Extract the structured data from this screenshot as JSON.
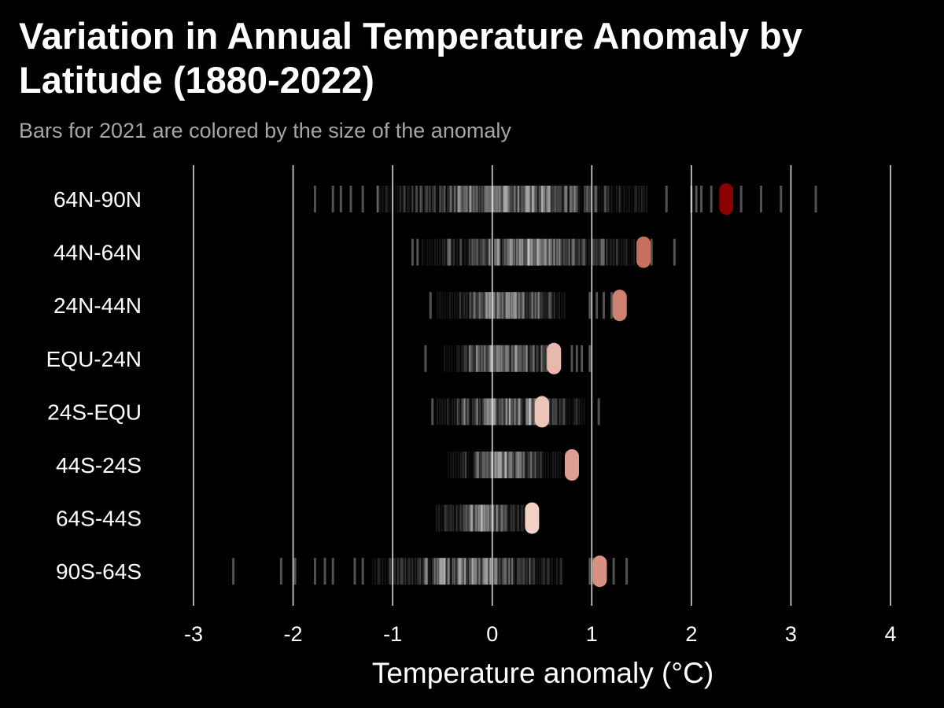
{
  "title": "Variation in Annual Temperature Anomaly by Latitude (1880-2022)",
  "subtitle": "Bars for 2021 are colored by the size of the anomaly",
  "chart_data": {
    "type": "strip",
    "title": "Variation in Annual Temperature Anomaly by Latitude (1880-2022)",
    "subtitle": "Bars for 2021 are colored by the size of the anomaly",
    "xlabel": "Temperature anomaly (°C)",
    "ylabel": "",
    "xlim": [
      -3,
      4
    ],
    "x_ticks": [
      -3,
      -2,
      -1,
      0,
      1,
      2,
      3,
      4
    ],
    "x_tick_labels": [
      "-3",
      "-2",
      "-1",
      "0",
      "1",
      "2",
      "3",
      "4"
    ],
    "grid": "vertical",
    "background": "#000000",
    "categories": [
      "64N-90N",
      "44N-64N",
      "24N-44N",
      "EQU-24N",
      "24S-EQU",
      "44S-24S",
      "64S-44S",
      "90S-64S"
    ],
    "series": [
      {
        "name": "64N-90N",
        "min": -1.78,
        "max": 3.25,
        "core": [
          -1.15,
          1.55
        ],
        "highlight_2021": 2.35,
        "highlight_color": "#8b0000",
        "outliers": [
          -1.78,
          -1.6,
          -1.52,
          -1.42,
          -1.3,
          -1.15,
          1.75,
          2.0,
          2.05,
          2.1,
          2.2,
          2.5,
          2.7,
          2.9,
          3.25
        ]
      },
      {
        "name": "44N-64N",
        "min": -0.8,
        "max": 1.83,
        "core": [
          -0.7,
          1.45
        ],
        "highlight_2021": 1.52,
        "highlight_color": "#c87060",
        "outliers": [
          -0.8,
          -0.75,
          1.6,
          1.83
        ]
      },
      {
        "name": "24N-44N",
        "min": -0.62,
        "max": 1.3,
        "core": [
          -0.55,
          0.75
        ],
        "highlight_2021": 1.28,
        "highlight_color": "#d08070",
        "outliers": [
          -0.62,
          0.98,
          1.05,
          1.12,
          1.2
        ]
      },
      {
        "name": "EQU-24N",
        "min": -0.67,
        "max": 0.98,
        "core": [
          -0.48,
          0.72
        ],
        "highlight_2021": 0.62,
        "highlight_color": "#e8b8ac",
        "outliers": [
          -0.67,
          0.8,
          0.85,
          0.9,
          0.98
        ]
      },
      {
        "name": "24S-EQU",
        "min": -0.6,
        "max": 1.07,
        "core": [
          -0.55,
          0.95
        ],
        "highlight_2021": 0.5,
        "highlight_color": "#ecc4b8",
        "outliers": [
          -0.6,
          1.07
        ]
      },
      {
        "name": "44S-24S",
        "min": -0.44,
        "max": 0.8,
        "core": [
          -0.44,
          0.7
        ],
        "highlight_2021": 0.8,
        "highlight_color": "#dc9e90",
        "outliers": []
      },
      {
        "name": "64S-44S",
        "min": -0.56,
        "max": 0.4,
        "core": [
          -0.56,
          0.38
        ],
        "highlight_2021": 0.4,
        "highlight_color": "#f2d0c6",
        "outliers": []
      },
      {
        "name": "90S-64S",
        "min": -2.6,
        "max": 1.35,
        "core": [
          -1.2,
          0.72
        ],
        "highlight_2021": 1.08,
        "highlight_color": "#d89080",
        "outliers": [
          -2.6,
          -2.12,
          -1.98,
          -1.78,
          -1.68,
          -1.6,
          -1.38,
          -1.3,
          0.98,
          1.02,
          1.22,
          1.35
        ]
      }
    ]
  }
}
